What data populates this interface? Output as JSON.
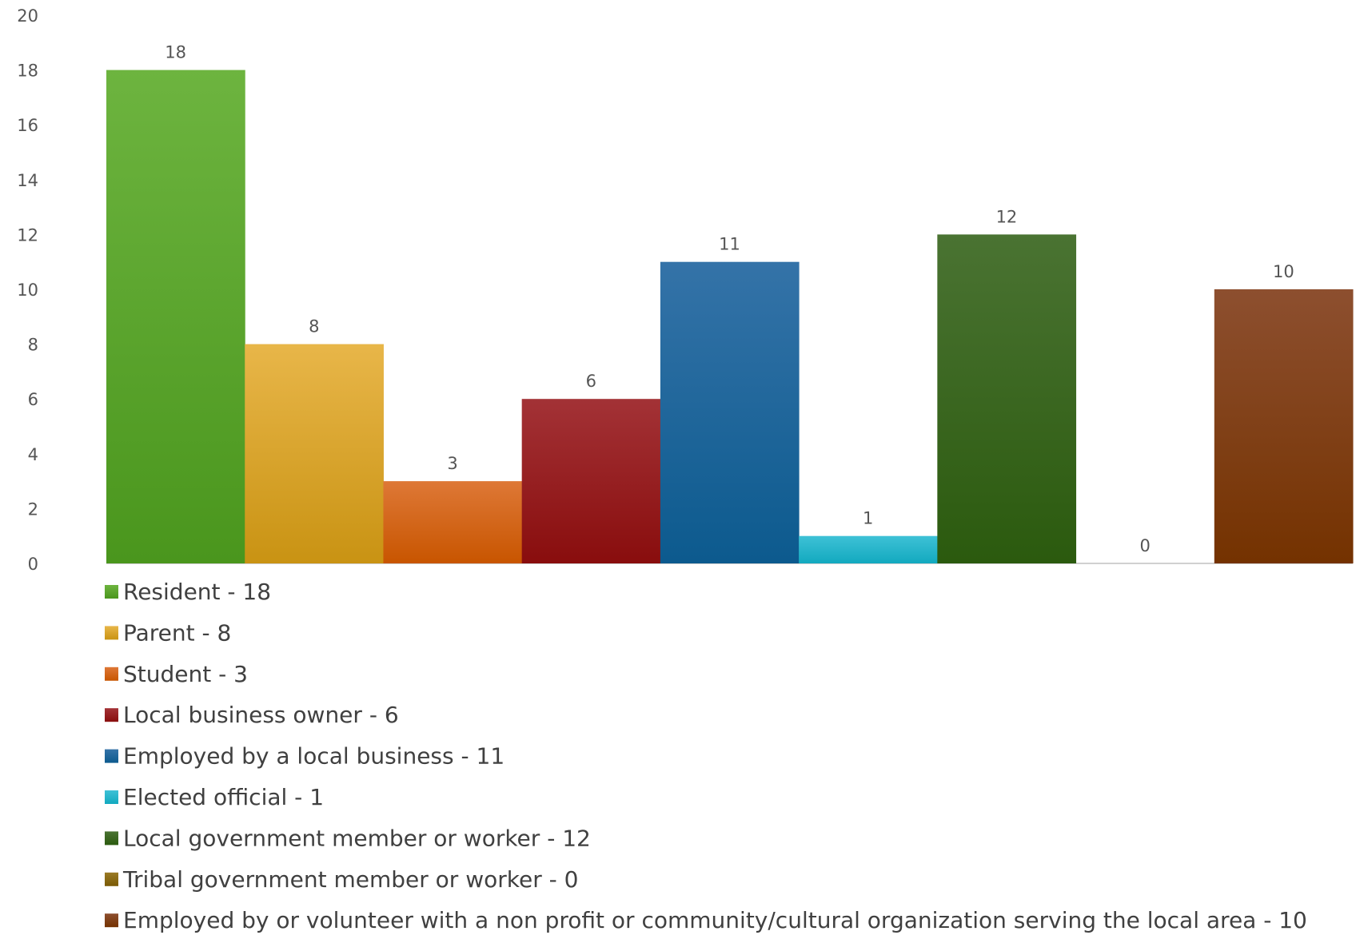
{
  "chart_data": {
    "type": "bar",
    "title": "",
    "xlabel": "",
    "ylabel": "",
    "ylim": [
      0,
      20
    ],
    "yticks": [
      0,
      2,
      4,
      6,
      8,
      10,
      12,
      14,
      16,
      18,
      20
    ],
    "grid": false,
    "legend_position": "bottom",
    "bars": [
      {
        "label": "Resident - 18",
        "value": 18,
        "color_top": "#6db43f",
        "color_bottom": "#4a961d"
      },
      {
        "label": "Parent - 8",
        "value": 8,
        "color_top": "#e8b649",
        "color_bottom": "#c99313"
      },
      {
        "label": "Student - 3",
        "value": 3,
        "color_top": "#de7836",
        "color_bottom": "#c85500"
      },
      {
        "label": "Local business owner - 6",
        "value": 6,
        "color_top": "#a33236",
        "color_bottom": "#890d0d"
      },
      {
        "label": "Employed by a local business - 11",
        "value": 11,
        "color_top": "#3473a8",
        "color_bottom": "#0c5a8e"
      },
      {
        "label": "Elected official - 1",
        "value": 1,
        "color_top": "#3ec1d6",
        "color_bottom": "#12a9bf"
      },
      {
        "label": "Local government member or worker - 12",
        "value": 12,
        "color_top": "#4a7332",
        "color_bottom": "#2b5a0e"
      },
      {
        "label": "Tribal government member or worker - 0",
        "value": 0,
        "color_top": "#9a7a25",
        "color_bottom": "#7a5a05"
      },
      {
        "label": "Employed by or volunteer with a non profit or community/cultural organization serving the local area - 10",
        "value": 10,
        "color_top": "#8d4f2f",
        "color_bottom": "#743200"
      }
    ]
  }
}
